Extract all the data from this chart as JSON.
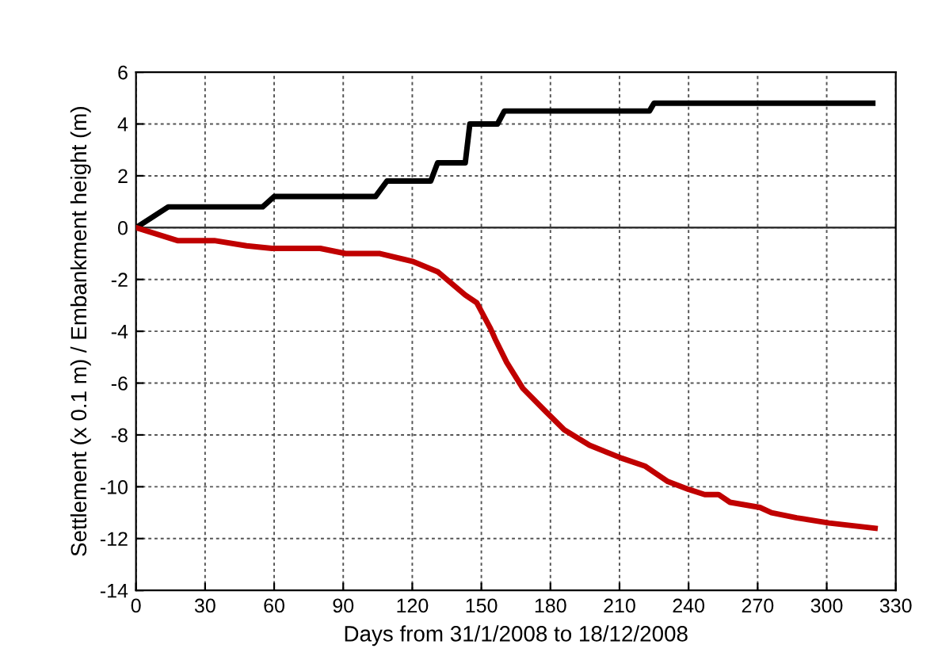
{
  "chart_data": {
    "type": "line",
    "xlabel": "Days from 31/1/2008 to 18/12/2008",
    "ylabel": "Settlement (x 0.1 m) / Embankment height (m)",
    "xlim": [
      0,
      330
    ],
    "xticks": [
      0,
      30,
      60,
      90,
      120,
      150,
      180,
      210,
      240,
      270,
      300,
      330
    ],
    "ylim": [
      -14,
      6
    ],
    "yticks": [
      -14,
      -12,
      -10,
      -8,
      -6,
      -4,
      -2,
      0,
      2,
      4,
      6
    ],
    "grid": true,
    "line_style": "solid",
    "marker": "none",
    "legend": false,
    "series": [
      {
        "color": "#000000",
        "x": [
          0,
          14,
          55,
          60,
          104,
          109,
          128,
          131,
          143,
          145,
          157,
          160,
          223,
          225,
          320
        ],
        "values": [
          0,
          0.8,
          0.8,
          1.2,
          1.2,
          1.8,
          1.8,
          2.5,
          2.5,
          4.0,
          4.0,
          4.5,
          4.5,
          4.8,
          4.8
        ]
      },
      {
        "color": "#c00000",
        "x": [
          0,
          18,
          34,
          48,
          59,
          80,
          91,
          106,
          120,
          131,
          143,
          148,
          154,
          156,
          161,
          168,
          178,
          186,
          197,
          211,
          221,
          231,
          240,
          247,
          253,
          258,
          271,
          276,
          287,
          301,
          321
        ],
        "values": [
          0,
          -0.5,
          -0.5,
          -0.7,
          -0.8,
          -0.8,
          -1.0,
          -1.0,
          -1.3,
          -1.7,
          -2.6,
          -2.9,
          -3.9,
          -4.3,
          -5.2,
          -6.2,
          -7.1,
          -7.8,
          -8.4,
          -8.9,
          -9.2,
          -9.8,
          -10.1,
          -10.3,
          -10.3,
          -10.6,
          -10.8,
          -11.0,
          -11.2,
          -11.4,
          -11.6
        ]
      }
    ]
  }
}
